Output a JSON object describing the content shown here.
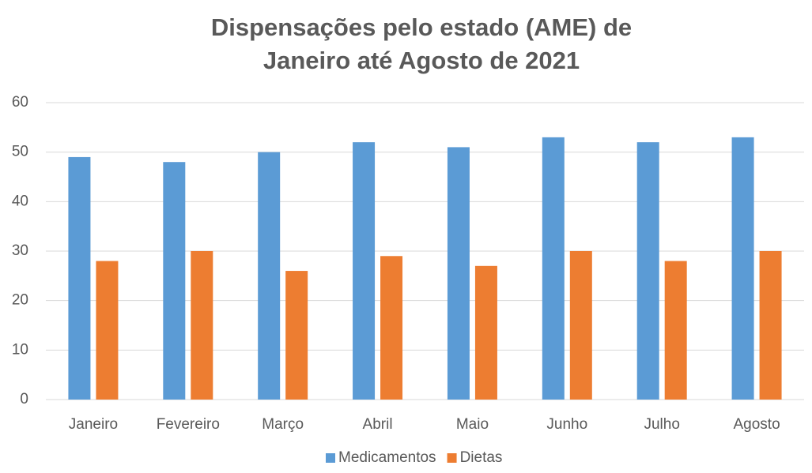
{
  "chart_data": {
    "type": "bar",
    "title": [
      "Dispensações pelo estado (AME) de",
      "Janeiro até Agosto de 2021"
    ],
    "categories": [
      "Janeiro",
      "Fevereiro",
      "Março",
      "Abril",
      "Maio",
      "Junho",
      "Julho",
      "Agosto"
    ],
    "series": [
      {
        "name": "Medicamentos",
        "color": "#5b9bd5",
        "values": [
          49,
          48,
          50,
          52,
          51,
          53,
          52,
          53
        ]
      },
      {
        "name": "Dietas",
        "color": "#ed7d31",
        "values": [
          28,
          30,
          26,
          29,
          27,
          30,
          28,
          30
        ]
      }
    ],
    "ylim": [
      0,
      60
    ],
    "yticks": [
      0,
      10,
      20,
      30,
      40,
      50,
      60
    ],
    "grid": true,
    "legend": "bottom"
  }
}
